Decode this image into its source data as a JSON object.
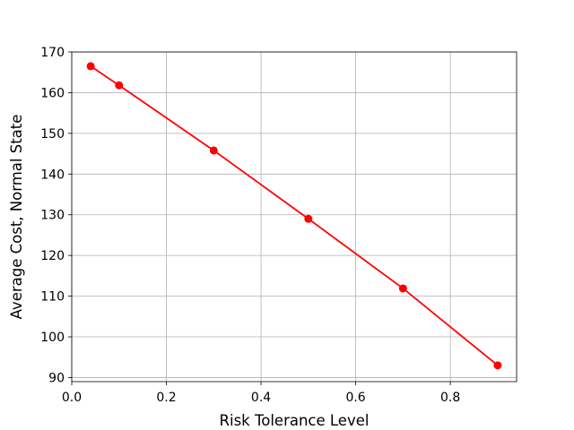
{
  "chart_data": {
    "type": "line",
    "x": [
      0.04,
      0.1,
      0.3,
      0.5,
      0.7,
      0.9
    ],
    "series": [
      {
        "values": [
          166.5,
          161.8,
          145.8,
          129.0,
          111.9,
          93.0
        ],
        "color": "#ff0000",
        "marker": "circle"
      }
    ],
    "xlabel": "Risk Tolerance Level",
    "ylabel": "Average Cost, Normal State",
    "xlim": [
      0.0,
      0.94
    ],
    "ylim": [
      89,
      170
    ],
    "xticks": [
      0.0,
      0.2,
      0.4,
      0.6,
      0.8
    ],
    "xtick_labels": [
      "0.0",
      "0.2",
      "0.4",
      "0.6",
      "0.8"
    ],
    "yticks": [
      90,
      100,
      110,
      120,
      130,
      140,
      150,
      160,
      170
    ],
    "ytick_labels": [
      "90",
      "100",
      "110",
      "120",
      "130",
      "140",
      "150",
      "160",
      "170"
    ],
    "grid": true
  }
}
